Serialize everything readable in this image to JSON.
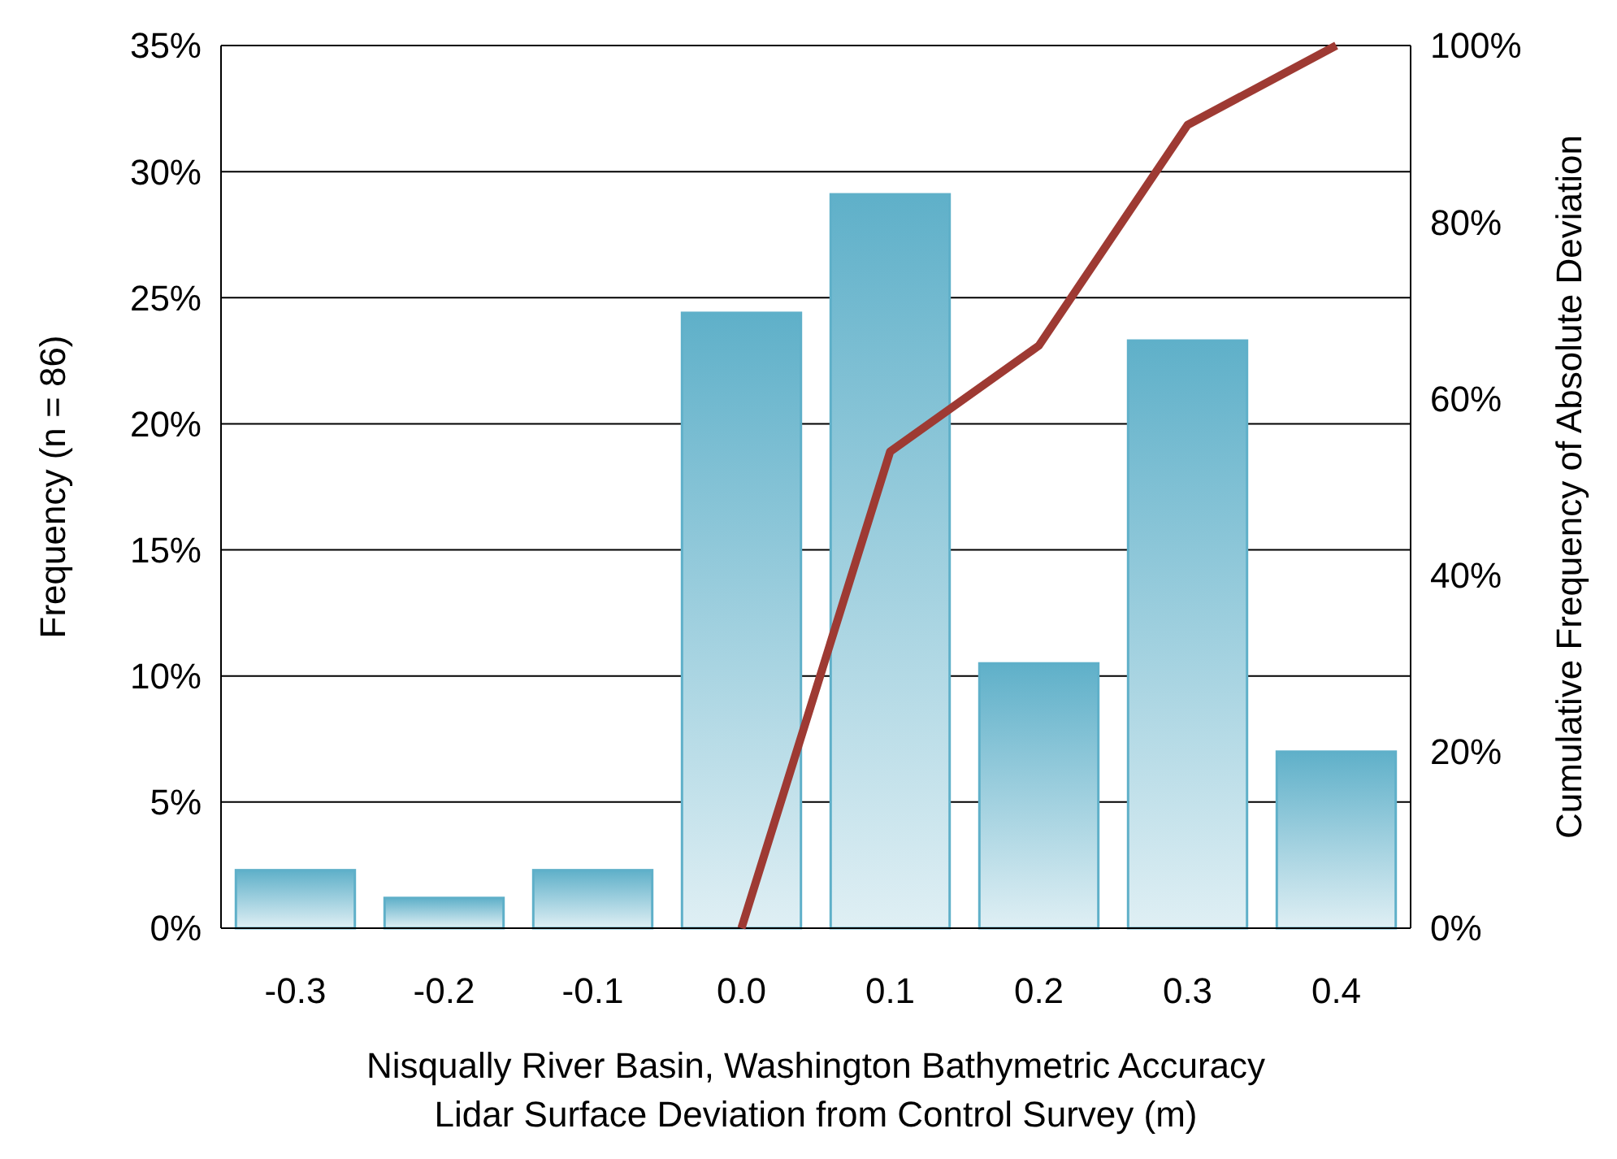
{
  "chart_data": {
    "type": "bar",
    "xlabel": "Nisqually River Basin, Washington Bathymetric Accuracy\nLidar Surface Deviation from Control Survey (m)",
    "ylabel": "Frequency (n = 86)",
    "y2label": "Cumulative Frequency of Absolute Deviation",
    "categories": [
      "-0.3",
      "-0.2",
      "-0.1",
      "0.0",
      "0.1",
      "0.2",
      "0.3",
      "0.4"
    ],
    "series": [
      {
        "color": "#5fb0c9",
        "values": [
          2.3,
          1.2,
          2.3,
          24.4,
          29.1,
          10.5,
          23.3,
          7.0
        ]
      },
      {
        "type": "line",
        "axis": "y2",
        "color": "#9e3a33",
        "values": [
          null,
          null,
          null,
          0,
          54,
          66,
          91,
          100
        ]
      }
    ],
    "ylim": [
      0,
      35
    ],
    "yticks": [
      {
        "value": 0,
        "label": "0%"
      },
      {
        "value": 5,
        "label": "5%"
      },
      {
        "value": 10,
        "label": "10%"
      },
      {
        "value": 15,
        "label": "15%"
      },
      {
        "value": 20,
        "label": "20%"
      },
      {
        "value": 25,
        "label": "25%"
      },
      {
        "value": 30,
        "label": "30%"
      },
      {
        "value": 35,
        "label": "35%"
      }
    ],
    "y2lim": [
      0,
      100
    ],
    "y2ticks": [
      {
        "value": 0,
        "label": "0%"
      },
      {
        "value": 20,
        "label": "20%"
      },
      {
        "value": 40,
        "label": "40%"
      },
      {
        "value": 60,
        "label": "60%"
      },
      {
        "value": 80,
        "label": "80%"
      },
      {
        "value": 100,
        "label": "100%"
      }
    ],
    "grid": "y",
    "marker": "none",
    "line_style": "solid"
  }
}
